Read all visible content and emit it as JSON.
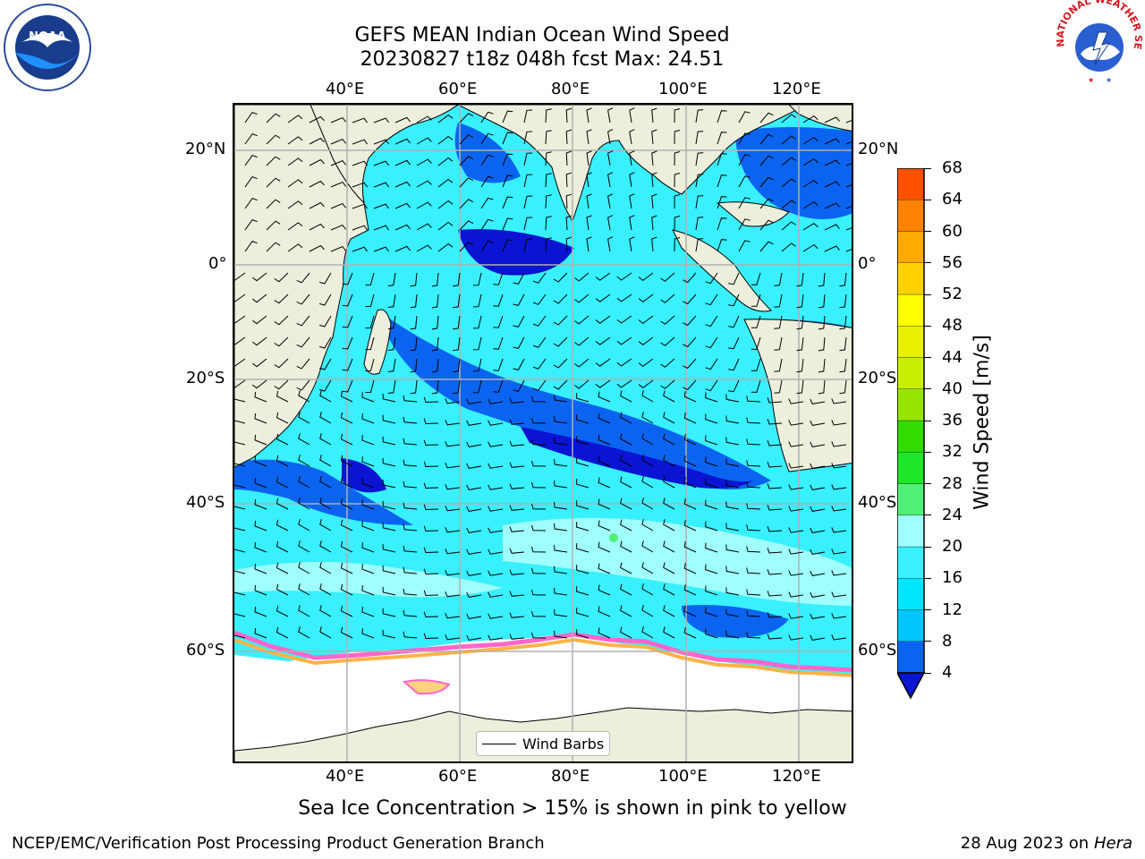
{
  "header": {
    "title_line1": "GEFS MEAN Indian Ocean Wind Speed",
    "title_line2": "20230827 t18z 048h fcst   Max: 24.51"
  },
  "logos": {
    "left": {
      "name": "noaa-logo",
      "text": "NOAA"
    },
    "right": {
      "name": "nws-logo",
      "text": "NATIONAL WEATHER SERVICE"
    }
  },
  "map": {
    "lon_ticks": [
      "40°E",
      "60°E",
      "80°E",
      "100°E",
      "120°E"
    ],
    "lat_ticks_left": [
      "20°N",
      "0°",
      "20°S",
      "40°S",
      "60°S"
    ],
    "lat_ticks_right": [
      "20°N",
      "0°",
      "20°S",
      "40°S",
      "60°S"
    ],
    "legend": {
      "label": "Wind Barbs"
    },
    "colors": {
      "land": "#eeeedd",
      "ice_region": "#ffffff",
      "grid": "#b0b0b0"
    }
  },
  "colorbar": {
    "title": "Wind Speed [m/s]",
    "ticks": [
      "68",
      "64",
      "60",
      "56",
      "52",
      "48",
      "44",
      "40",
      "36",
      "32",
      "28",
      "24",
      "20",
      "16",
      "12",
      "8",
      "4"
    ],
    "colors_bottom_to_top": [
      "#0a64f0",
      "#00c8ff",
      "#00e6ff",
      "#38f0ff",
      "#a0ffff",
      "#50f078",
      "#1ee628",
      "#32dc00",
      "#96e600",
      "#c8f000",
      "#e6f000",
      "#ffff00",
      "#ffd200",
      "#ffaa00",
      "#ff8200",
      "#ff5000",
      "#ff1e00"
    ],
    "under_color": "#0a14d2"
  },
  "notes": {
    "sea_ice": "Sea Ice Concentration > 15% is shown in pink to yellow"
  },
  "footer": {
    "left": "NCEP/EMC/Verification Post Processing Product Generation Branch",
    "date": "28 Aug 2023 on",
    "machine": "Hera"
  }
}
